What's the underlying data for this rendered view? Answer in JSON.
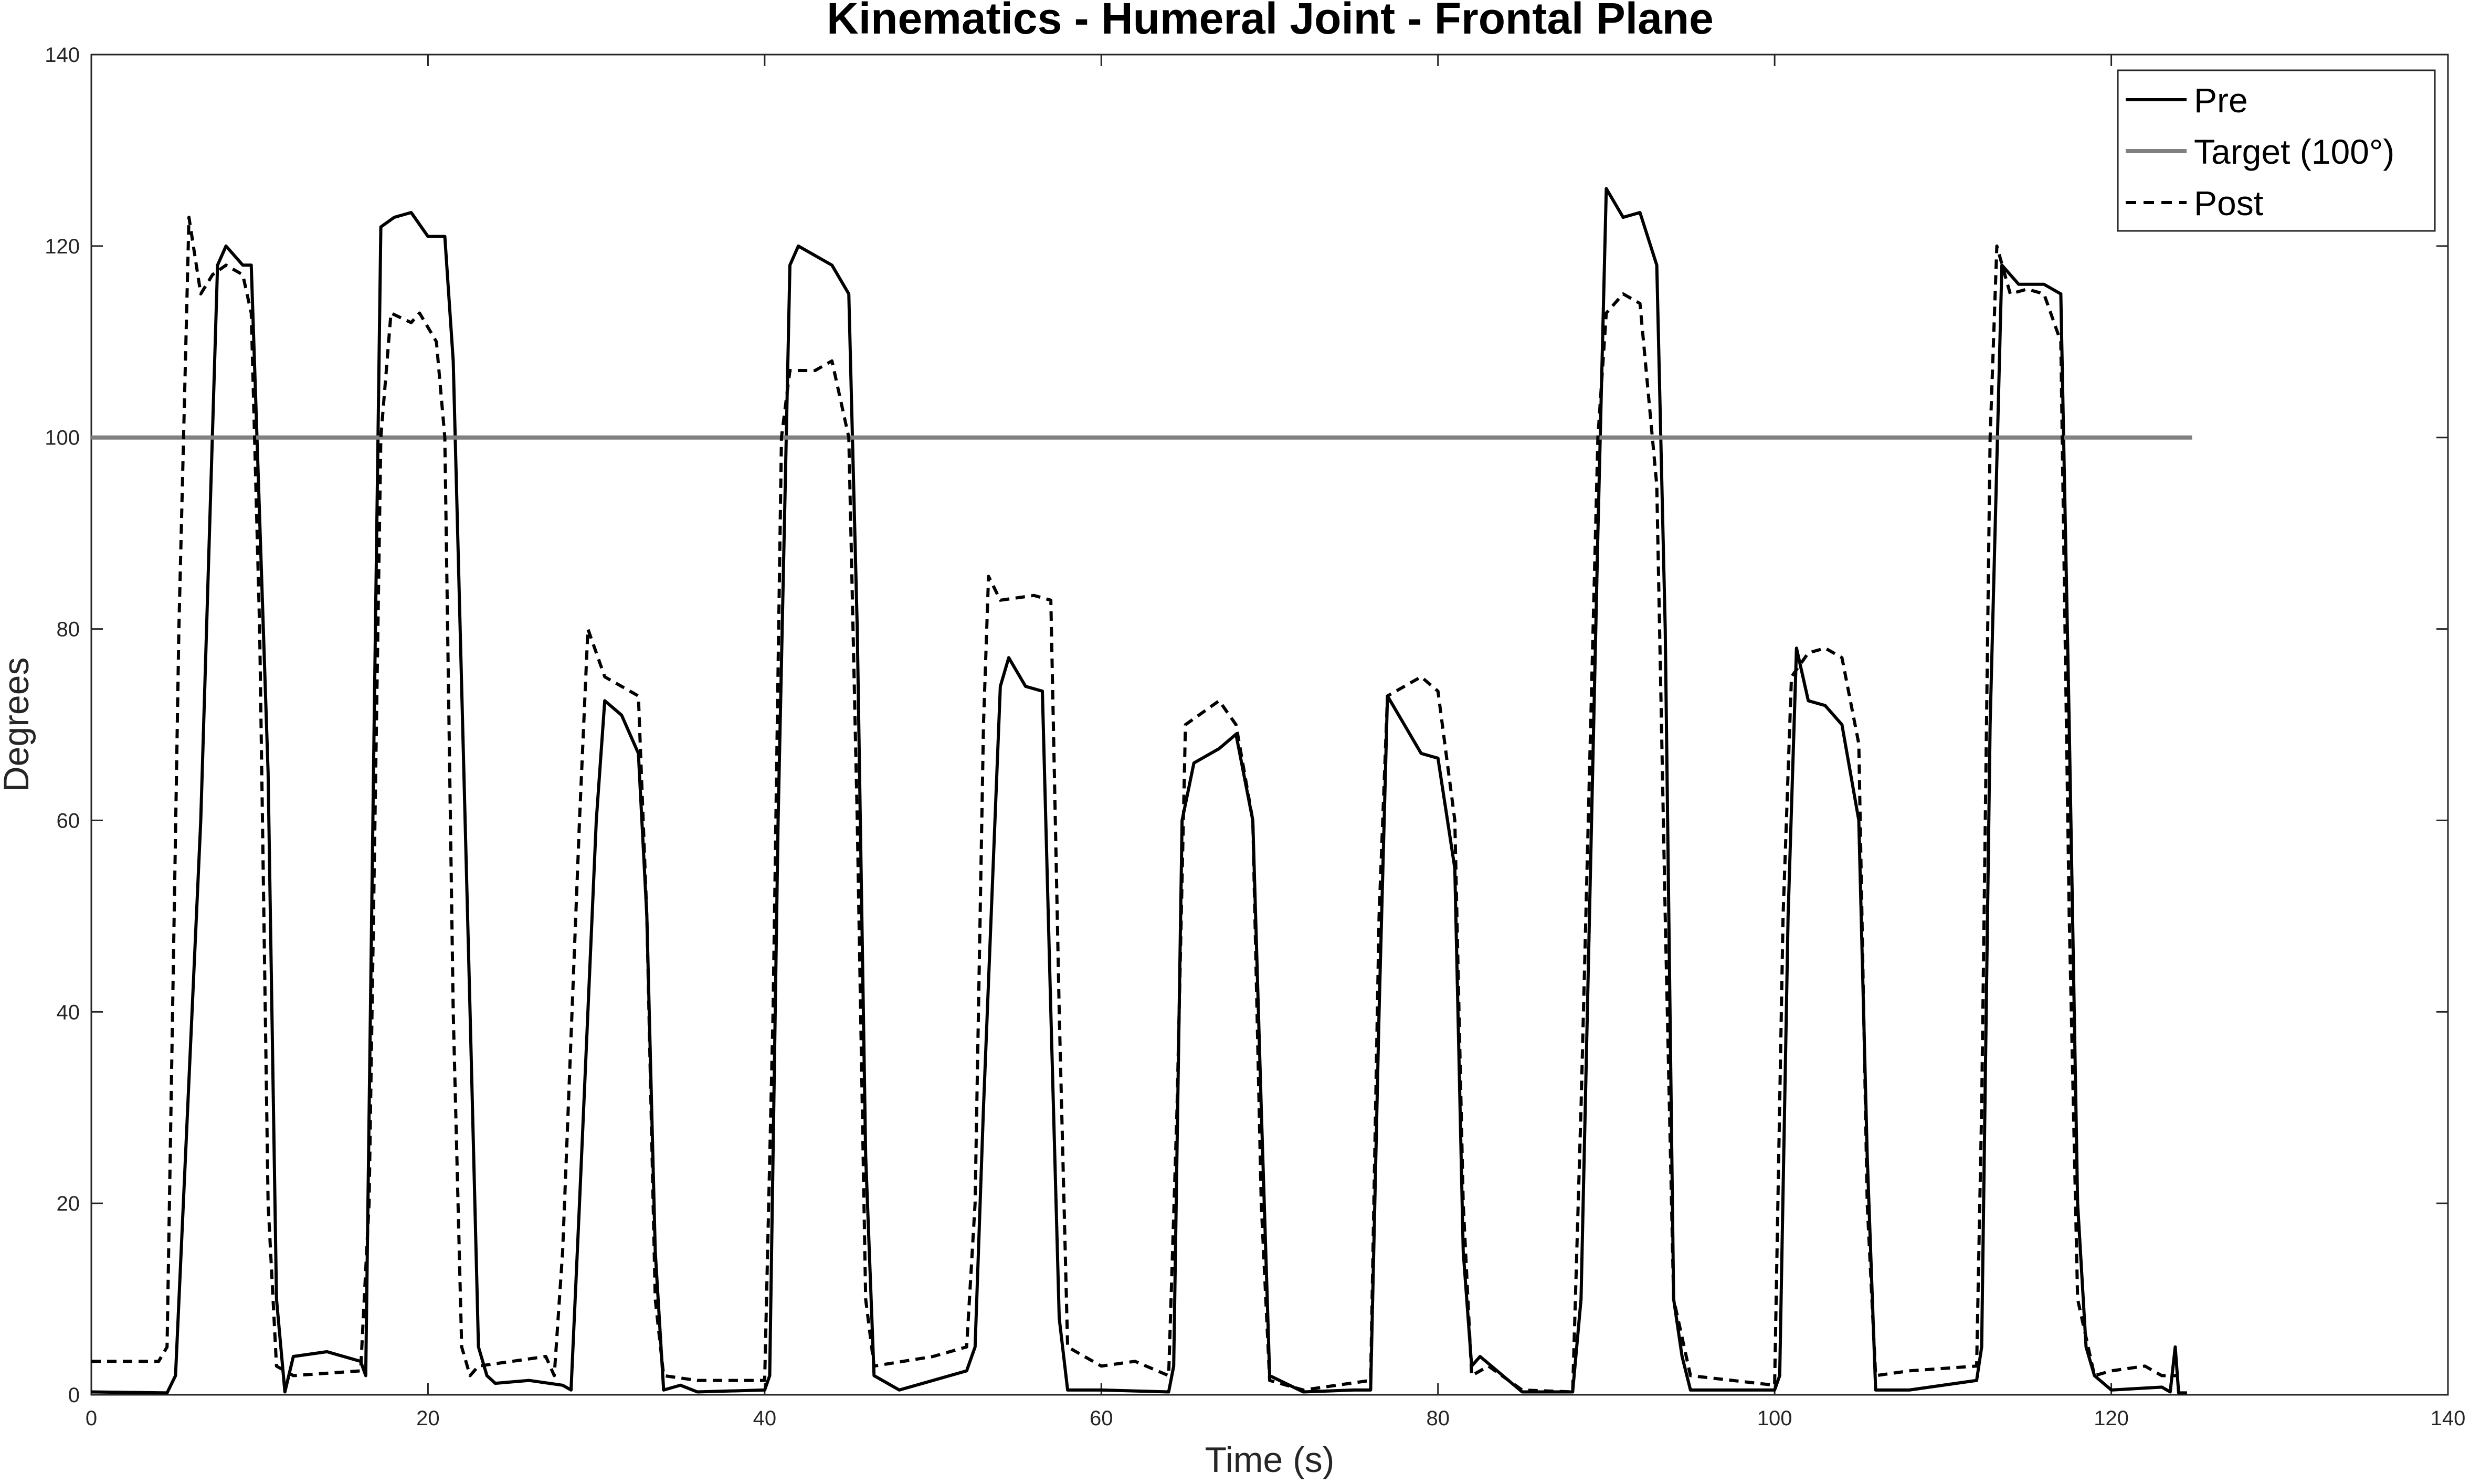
{
  "chart_data": {
    "type": "line",
    "title": "Kinematics - Humeral Joint - Frontal Plane",
    "xlabel": "Time (s)",
    "ylabel": "Degrees",
    "xlim": [
      0,
      140
    ],
    "ylim": [
      0,
      140
    ],
    "xticks": [
      "0",
      "20",
      "40",
      "60",
      "80",
      "100",
      "120",
      "140"
    ],
    "yticks": [
      "0",
      "20",
      "40",
      "60",
      "80",
      "100",
      "120",
      "140"
    ],
    "xtick_values": [
      0,
      20,
      40,
      60,
      80,
      100,
      120,
      140
    ],
    "ytick_values": [
      0,
      20,
      40,
      60,
      80,
      100,
      120,
      140
    ],
    "grid": false,
    "legend_position": "top-right",
    "legend": [
      "Pre",
      "Target (100°)",
      "Post"
    ],
    "series": [
      {
        "name": "Pre",
        "color": "#000000",
        "dash": "solid",
        "points": [
          [
            0,
            0.3
          ],
          [
            4.5,
            0.2
          ],
          [
            5,
            2
          ],
          [
            6.5,
            60
          ],
          [
            7.5,
            118
          ],
          [
            8,
            120
          ],
          [
            9,
            118
          ],
          [
            9.5,
            118
          ],
          [
            10.5,
            65
          ],
          [
            11,
            10
          ],
          [
            11.5,
            0.3
          ],
          [
            12,
            4
          ],
          [
            14,
            4.5
          ],
          [
            16,
            3.5
          ],
          [
            16.3,
            2
          ],
          [
            16.8,
            70
          ],
          [
            17.2,
            122
          ],
          [
            18,
            123
          ],
          [
            19,
            123.5
          ],
          [
            20,
            121
          ],
          [
            21,
            121
          ],
          [
            21.5,
            108
          ],
          [
            22.5,
            40
          ],
          [
            23,
            5
          ],
          [
            23.5,
            2
          ],
          [
            24,
            1.2
          ],
          [
            26,
            1.5
          ],
          [
            28,
            1
          ],
          [
            28.5,
            0.5
          ],
          [
            29,
            20
          ],
          [
            30,
            60
          ],
          [
            30.5,
            72.5
          ],
          [
            31.5,
            71
          ],
          [
            32.5,
            67
          ],
          [
            33,
            50
          ],
          [
            33.5,
            15
          ],
          [
            34,
            0.5
          ],
          [
            35,
            1
          ],
          [
            36,
            0.3
          ],
          [
            40,
            0.5
          ],
          [
            40.3,
            2
          ],
          [
            40.8,
            60
          ],
          [
            41.5,
            118
          ],
          [
            42,
            120
          ],
          [
            43,
            119
          ],
          [
            44,
            118
          ],
          [
            45,
            115
          ],
          [
            45.5,
            80
          ],
          [
            46,
            25
          ],
          [
            46.5,
            2
          ],
          [
            48,
            0.5
          ],
          [
            52,
            2.5
          ],
          [
            52.5,
            5
          ],
          [
            53,
            30
          ],
          [
            54,
            74
          ],
          [
            54.5,
            77
          ],
          [
            55.5,
            74
          ],
          [
            56.5,
            73.5
          ],
          [
            57,
            40
          ],
          [
            57.5,
            8
          ],
          [
            58,
            0.5
          ],
          [
            60,
            0.5
          ],
          [
            64,
            0.3
          ],
          [
            64.3,
            3
          ],
          [
            64.8,
            60
          ],
          [
            65.5,
            66
          ],
          [
            67,
            67.5
          ],
          [
            68,
            69
          ],
          [
            69,
            60
          ],
          [
            69.5,
            30
          ],
          [
            70,
            2
          ],
          [
            72,
            0.3
          ],
          [
            75,
            0.5
          ],
          [
            76,
            0.5
          ],
          [
            76.5,
            40
          ],
          [
            77,
            73
          ],
          [
            78,
            70
          ],
          [
            79,
            67
          ],
          [
            80,
            66.5
          ],
          [
            81,
            55
          ],
          [
            81.5,
            15
          ],
          [
            82,
            3
          ],
          [
            82.5,
            4
          ],
          [
            85,
            0.3
          ],
          [
            88,
            0.3
          ],
          [
            88.5,
            10
          ],
          [
            89.5,
            90
          ],
          [
            90,
            126
          ],
          [
            91,
            123
          ],
          [
            92,
            123.5
          ],
          [
            93,
            118
          ],
          [
            93.5,
            80
          ],
          [
            94,
            10
          ],
          [
            94.5,
            4
          ],
          [
            95,
            0.5
          ],
          [
            100,
            0.5
          ],
          [
            100.3,
            2
          ],
          [
            100.8,
            50
          ],
          [
            101.3,
            78
          ],
          [
            102,
            72.5
          ],
          [
            103,
            72
          ],
          [
            104,
            70
          ],
          [
            105,
            60
          ],
          [
            105.5,
            25
          ],
          [
            106,
            0.5
          ],
          [
            108,
            0.5
          ],
          [
            112,
            1.5
          ],
          [
            112.3,
            5
          ],
          [
            112.8,
            70
          ],
          [
            113.5,
            118
          ],
          [
            114.5,
            116
          ],
          [
            116,
            116
          ],
          [
            117,
            115
          ],
          [
            117.5,
            70
          ],
          [
            118,
            20
          ],
          [
            118.5,
            5
          ],
          [
            119,
            2
          ],
          [
            120,
            0.5
          ],
          [
            123,
            0.8
          ],
          [
            123.5,
            0.3
          ],
          [
            123.8,
            5
          ],
          [
            124,
            0.2
          ],
          [
            124.5,
            0.2
          ]
        ]
      },
      {
        "name": "Target (100°)",
        "color": "#808080",
        "dash": "solid",
        "points": [
          [
            0,
            100
          ],
          [
            124.8,
            100
          ]
        ]
      },
      {
        "name": "Post",
        "color": "#000000",
        "dash": "dashed",
        "points": [
          [
            0,
            3.5
          ],
          [
            4,
            3.5
          ],
          [
            4.5,
            5
          ],
          [
            5.2,
            80
          ],
          [
            5.8,
            123
          ],
          [
            6.5,
            115
          ],
          [
            7.2,
            117
          ],
          [
            8,
            118
          ],
          [
            9,
            117
          ],
          [
            9.5,
            113
          ],
          [
            10,
            80
          ],
          [
            10.5,
            20
          ],
          [
            11,
            3
          ],
          [
            12,
            2
          ],
          [
            16,
            2.5
          ],
          [
            16.5,
            20
          ],
          [
            17.2,
            100
          ],
          [
            17.8,
            113
          ],
          [
            19,
            112
          ],
          [
            19.5,
            113
          ],
          [
            20.5,
            110
          ],
          [
            21,
            100
          ],
          [
            21.5,
            40
          ],
          [
            22,
            5
          ],
          [
            22.5,
            2
          ],
          [
            23,
            3
          ],
          [
            25,
            3.5
          ],
          [
            27,
            4
          ],
          [
            27.5,
            2
          ],
          [
            28,
            15
          ],
          [
            29,
            60
          ],
          [
            29.5,
            80
          ],
          [
            30.5,
            75
          ],
          [
            31.5,
            74
          ],
          [
            32.5,
            73
          ],
          [
            33,
            50
          ],
          [
            33.5,
            10
          ],
          [
            34,
            2
          ],
          [
            36,
            1.5
          ],
          [
            40,
            1.5
          ],
          [
            40.5,
            40
          ],
          [
            41,
            100
          ],
          [
            41.5,
            107
          ],
          [
            43,
            107
          ],
          [
            44,
            108
          ],
          [
            45,
            100
          ],
          [
            45.5,
            60
          ],
          [
            46,
            10
          ],
          [
            46.5,
            3
          ],
          [
            50,
            4
          ],
          [
            52,
            5
          ],
          [
            52.5,
            20
          ],
          [
            53,
            70
          ],
          [
            53.3,
            85.5
          ],
          [
            54,
            83
          ],
          [
            56,
            83.5
          ],
          [
            57,
            83
          ],
          [
            57.5,
            40
          ],
          [
            58,
            5
          ],
          [
            60,
            3
          ],
          [
            62,
            3.5
          ],
          [
            64,
            2
          ],
          [
            64.5,
            30
          ],
          [
            65,
            70
          ],
          [
            67,
            72.5
          ],
          [
            68,
            70
          ],
          [
            69,
            60
          ],
          [
            69.5,
            20
          ],
          [
            70,
            1.5
          ],
          [
            72,
            0.5
          ],
          [
            76,
            1.5
          ],
          [
            76.5,
            50
          ],
          [
            77,
            73
          ],
          [
            79,
            75
          ],
          [
            80,
            73.5
          ],
          [
            81,
            60
          ],
          [
            81.5,
            20
          ],
          [
            82,
            2
          ],
          [
            83,
            3
          ],
          [
            85,
            0.5
          ],
          [
            88,
            0.3
          ],
          [
            88.5,
            30
          ],
          [
            89.5,
            100
          ],
          [
            90,
            113
          ],
          [
            91,
            115
          ],
          [
            92,
            114
          ],
          [
            93,
            95
          ],
          [
            93.5,
            50
          ],
          [
            94,
            10
          ],
          [
            95,
            2
          ],
          [
            100,
            1
          ],
          [
            100.5,
            50
          ],
          [
            101,
            75
          ],
          [
            102,
            77.5
          ],
          [
            103,
            78
          ],
          [
            104,
            77
          ],
          [
            105,
            68
          ],
          [
            105.5,
            20
          ],
          [
            106,
            2
          ],
          [
            108,
            2.5
          ],
          [
            112,
            3
          ],
          [
            112.3,
            30
          ],
          [
            112.8,
            100
          ],
          [
            113.2,
            120
          ],
          [
            114,
            115
          ],
          [
            115,
            115.5
          ],
          [
            116,
            115
          ],
          [
            117,
            110
          ],
          [
            117.5,
            50
          ],
          [
            118,
            10
          ],
          [
            119,
            2
          ],
          [
            120,
            2.5
          ],
          [
            122,
            3
          ],
          [
            123,
            2
          ],
          [
            124,
            2
          ]
        ]
      }
    ]
  }
}
